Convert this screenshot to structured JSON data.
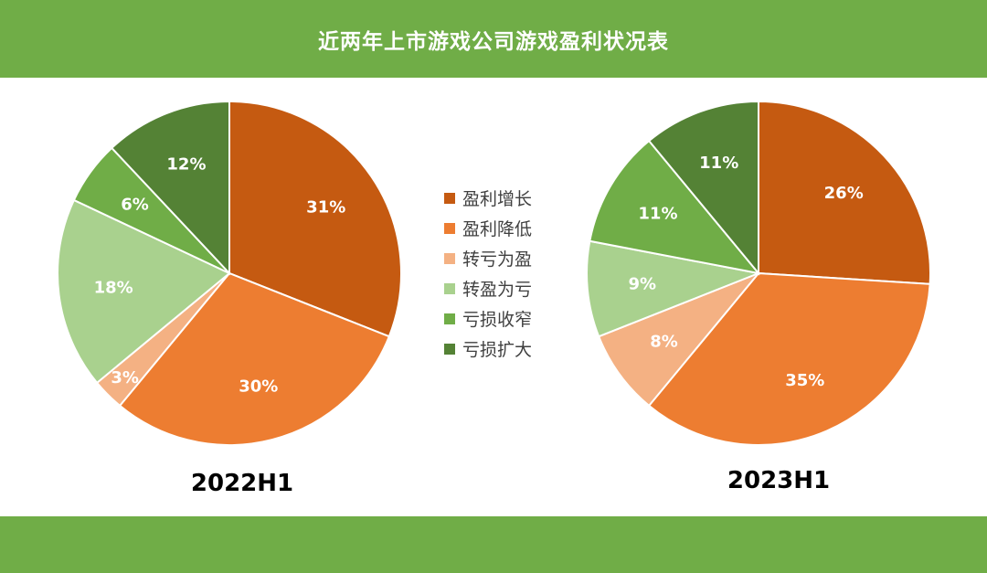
{
  "header": {
    "title": "近两年上市游戏公司游戏盈利状况表"
  },
  "legend": {
    "items": [
      {
        "label": "盈利增长",
        "color": "#c55a11"
      },
      {
        "label": "盈利降低",
        "color": "#ed7d31"
      },
      {
        "label": "转亏为盈",
        "color": "#f4b183"
      },
      {
        "label": "转盈为亏",
        "color": "#a9d18e"
      },
      {
        "label": "亏损收窄",
        "color": "#70ad47"
      },
      {
        "label": "亏损扩大",
        "color": "#548235"
      }
    ]
  },
  "chart_data": [
    {
      "type": "pie",
      "title": "2022H1",
      "categories": [
        "盈利增长",
        "盈利降低",
        "转亏为盈",
        "转盈为亏",
        "亏损收窄",
        "亏损扩大"
      ],
      "values": [
        31,
        30,
        3,
        18,
        6,
        12
      ],
      "labels": [
        "31%",
        "30%",
        "3%",
        "18%",
        "6%",
        "12%"
      ],
      "colors": [
        "#c55a11",
        "#ed7d31",
        "#f4b183",
        "#a9d18e",
        "#70ad47",
        "#548235"
      ]
    },
    {
      "type": "pie",
      "title": "2023H1",
      "categories": [
        "盈利增长",
        "盈利降低",
        "转亏为盈",
        "转盈为亏",
        "亏损收窄",
        "亏损扩大"
      ],
      "values": [
        26,
        35,
        8,
        9,
        11,
        11
      ],
      "labels": [
        "26%",
        "35%",
        "8%",
        "9%",
        "11%",
        "11%"
      ],
      "colors": [
        "#c55a11",
        "#ed7d31",
        "#f4b183",
        "#a9d18e",
        "#70ad47",
        "#548235"
      ]
    }
  ]
}
